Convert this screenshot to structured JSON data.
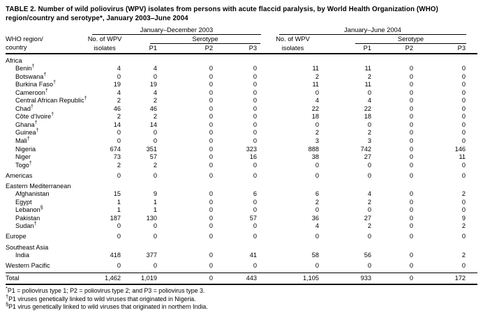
{
  "title": "TABLE 2. Number of wild poliovirus (WPV) isolates from persons with acute flaccid paralysis, by World Health Organization (WHO) region/country and serotype*, January 2003–June 2004",
  "table": {
    "header": {
      "row_header_line1": "WHO region/",
      "row_header_line2": "country",
      "group_2003": "January–December 2003",
      "group_2004": "January–June 2004",
      "isolates_line1": "No. of WPV",
      "isolates_line2": "isolates",
      "serotype_label_2003": "Serotype",
      "serotype_label_2004": "Serotype",
      "serotype_cols_2003": [
        "P1",
        "P2",
        "P3"
      ],
      "serotype_cols_2004": [
        "P1",
        "P2",
        "P3"
      ]
    },
    "rows": [
      {
        "type": "section",
        "label": "Africa"
      },
      {
        "type": "country",
        "label": "Benin",
        "marker": "†",
        "values": [
          "4",
          "4",
          "0",
          "0",
          "11",
          "11",
          "0",
          "0"
        ]
      },
      {
        "type": "country",
        "label": "Botswana",
        "marker": "†",
        "values": [
          "0",
          "0",
          "0",
          "0",
          "2",
          "2",
          "0",
          "0"
        ]
      },
      {
        "type": "country",
        "label": "Burkina Faso",
        "marker": "†",
        "values": [
          "19",
          "19",
          "0",
          "0",
          "11",
          "11",
          "0",
          "0"
        ]
      },
      {
        "type": "country",
        "label": "Cameroon",
        "marker": "†",
        "values": [
          "4",
          "4",
          "0",
          "0",
          "0",
          "0",
          "0",
          "0"
        ]
      },
      {
        "type": "country",
        "label": "Central African Republic",
        "marker": "†",
        "values": [
          "2",
          "2",
          "0",
          "0",
          "4",
          "4",
          "0",
          "0"
        ]
      },
      {
        "type": "country",
        "label": "Chad",
        "marker": "†",
        "values": [
          "46",
          "46",
          "0",
          "0",
          "22",
          "22",
          "0",
          "0"
        ]
      },
      {
        "type": "country",
        "label": "Côte d'Ivoire",
        "marker": "†",
        "values": [
          "2",
          "2",
          "0",
          "0",
          "18",
          "18",
          "0",
          "0"
        ]
      },
      {
        "type": "country",
        "label": "Ghana",
        "marker": "†",
        "values": [
          "14",
          "14",
          "0",
          "0",
          "0",
          "0",
          "0",
          "0"
        ]
      },
      {
        "type": "country",
        "label": "Guinea",
        "marker": "†",
        "values": [
          "0",
          "0",
          "0",
          "0",
          "2",
          "2",
          "0",
          "0"
        ]
      },
      {
        "type": "country",
        "label": "Mali",
        "marker": "†",
        "values": [
          "0",
          "0",
          "0",
          "0",
          "3",
          "3",
          "0",
          "0"
        ]
      },
      {
        "type": "country",
        "label": "Nigeria",
        "marker": "",
        "values": [
          "674",
          "351",
          "0",
          "323",
          "888",
          "742",
          "0",
          "146"
        ]
      },
      {
        "type": "country",
        "label": "Niger",
        "marker": "",
        "values": [
          "73",
          "57",
          "0",
          "16",
          "38",
          "27",
          "0",
          "11"
        ]
      },
      {
        "type": "country",
        "label": "Togo",
        "marker": "†",
        "values": [
          "2",
          "2",
          "0",
          "0",
          "0",
          "0",
          "0",
          "0"
        ]
      },
      {
        "type": "region",
        "label": "Americas",
        "marker": "",
        "values": [
          "0",
          "0",
          "0",
          "0",
          "0",
          "0",
          "0",
          "0"
        ]
      },
      {
        "type": "section",
        "label": "Eastern Mediterranean"
      },
      {
        "type": "country",
        "label": "Afghanistan",
        "marker": "",
        "values": [
          "15",
          "9",
          "0",
          "6",
          "6",
          "4",
          "0",
          "2"
        ]
      },
      {
        "type": "country",
        "label": "Egypt",
        "marker": "",
        "values": [
          "1",
          "1",
          "0",
          "0",
          "2",
          "2",
          "0",
          "0"
        ]
      },
      {
        "type": "country",
        "label": "Lebanon",
        "marker": "§",
        "values": [
          "1",
          "1",
          "0",
          "0",
          "0",
          "0",
          "0",
          "0"
        ]
      },
      {
        "type": "country",
        "label": "Pakistan",
        "marker": "",
        "values": [
          "187",
          "130",
          "0",
          "57",
          "36",
          "27",
          "0",
          "9"
        ]
      },
      {
        "type": "country",
        "label": "Sudan",
        "marker": "†",
        "values": [
          "0",
          "0",
          "0",
          "0",
          "4",
          "2",
          "0",
          "2"
        ]
      },
      {
        "type": "region",
        "label": "Europe",
        "marker": "",
        "values": [
          "0",
          "0",
          "0",
          "0",
          "0",
          "0",
          "0",
          "0"
        ]
      },
      {
        "type": "section",
        "label": "Southeast Asia"
      },
      {
        "type": "country",
        "label": "India",
        "marker": "",
        "values": [
          "418",
          "377",
          "0",
          "41",
          "58",
          "56",
          "0",
          "2"
        ]
      },
      {
        "type": "region",
        "label": "Western Pacific",
        "marker": "",
        "values": [
          "0",
          "0",
          "0",
          "0",
          "0",
          "0",
          "0",
          "0"
        ]
      },
      {
        "type": "total",
        "label": "Total",
        "marker": "",
        "values": [
          "1,462",
          "1,019",
          "0",
          "443",
          "1,105",
          "933",
          "0",
          "172"
        ]
      }
    ]
  },
  "footnotes": [
    {
      "marker": "*",
      "text": "P1 = poliovirus type 1; P2 = poliovirus type 2; and P3 = poliovirus type 3."
    },
    {
      "marker": "†",
      "text": "P1 viruses genetically linked to wild viruses that originated in Nigeria."
    },
    {
      "marker": "§",
      "text": "P1 virus genetically linked to wild viruses that originated in northern India."
    }
  ]
}
